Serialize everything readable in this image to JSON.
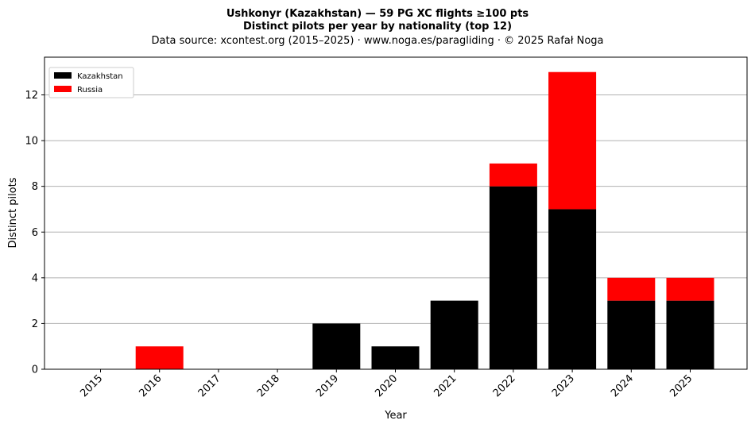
{
  "title_lines": [
    "Ushkonyr (Kazakhstan)  —  59 PG XC flights ≥100 pts",
    "Distinct pilots per year by nationality (top 12)",
    "Data source: xcontest.org (2015–2025)  ·  www.noga.es/paragliding  ·  © 2025 Rafał Noga"
  ],
  "chart_data": {
    "type": "bar",
    "stacked": true,
    "categories": [
      "2015",
      "2016",
      "2017",
      "2018",
      "2019",
      "2020",
      "2021",
      "2022",
      "2023",
      "2024",
      "2025"
    ],
    "series": [
      {
        "name": "Kazakhstan",
        "color": "#000000",
        "values": [
          0,
          0,
          0,
          0,
          2,
          1,
          3,
          8,
          7,
          3,
          3
        ]
      },
      {
        "name": "Russia",
        "color": "#ff0000",
        "values": [
          0,
          1,
          0,
          0,
          0,
          0,
          0,
          1,
          6,
          1,
          1
        ]
      }
    ],
    "xlabel": "Year",
    "ylabel": "Distinct pilots",
    "ylim": [
      0,
      13.65
    ],
    "yticks": [
      0,
      2,
      4,
      6,
      8,
      10,
      12
    ],
    "grid": "y",
    "legend_position": "top-left"
  }
}
